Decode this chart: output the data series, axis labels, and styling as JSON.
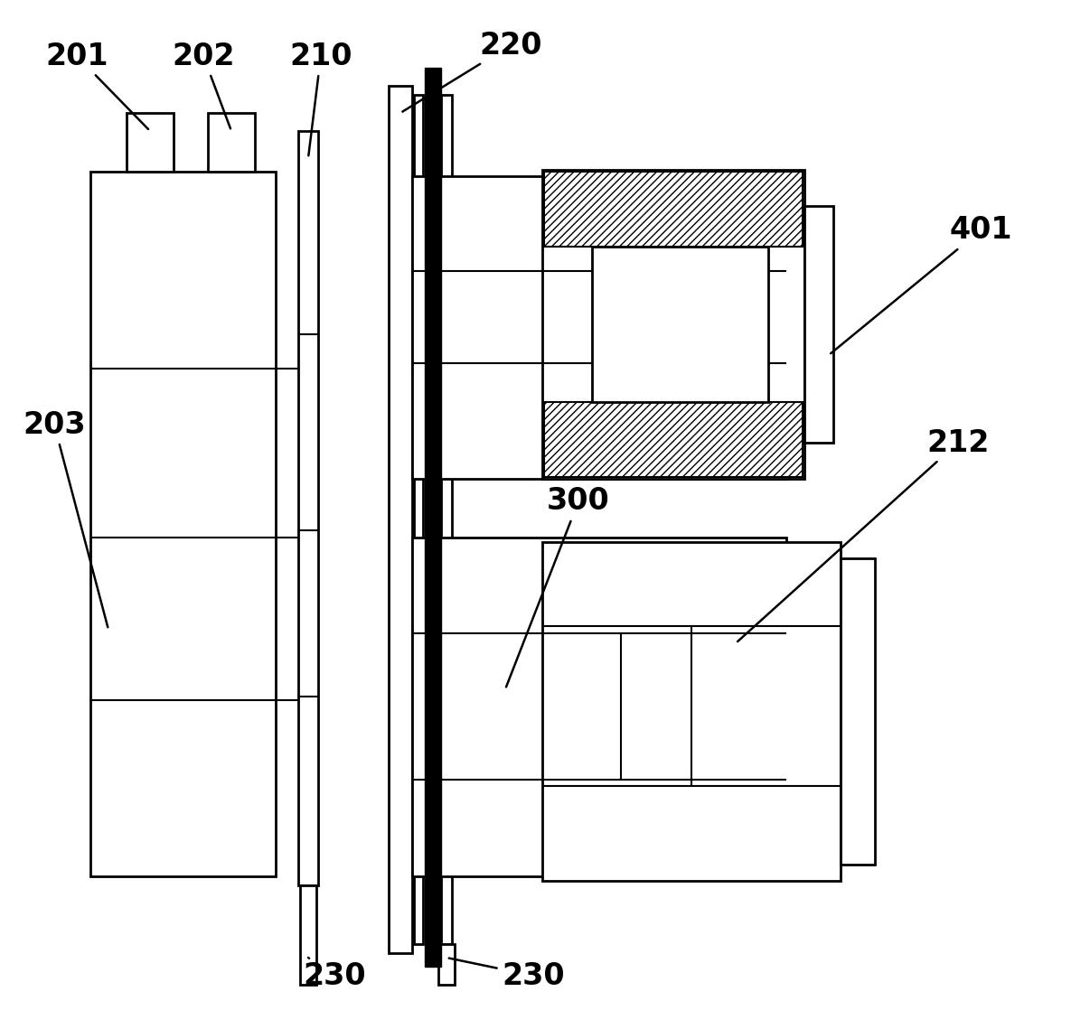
{
  "bg_color": "#ffffff",
  "line_color": "#000000",
  "figsize": [
    12.06,
    11.39
  ],
  "dpi": 100,
  "lw_main": 2.0,
  "lw_thick": 5.0,
  "label_fontsize": 24
}
